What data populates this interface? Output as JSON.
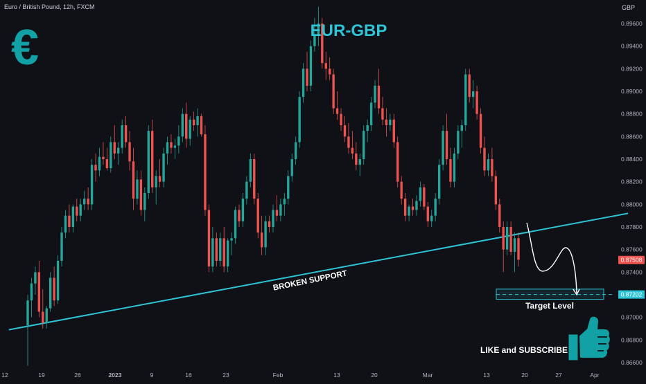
{
  "header": {
    "symbol_line": "Euro / British Pound, 12h, FXCM",
    "currency": "GBP"
  },
  "annotations": {
    "title": "EUR-GBP",
    "logo_symbol": "€",
    "support_label": "BROKEN SUPPORT",
    "target_label": "Target Level",
    "cta_label": "LIKE and SUBSCRIBE",
    "cta_icon": "thumbs-up-icon"
  },
  "colors": {
    "background": "#0f1116",
    "bull": "#26a69a",
    "bear": "#ef5350",
    "accent": "#2ec4d6",
    "current_price_badge": "#ef5350",
    "target_badge": "#2ec4d6"
  },
  "chart_data": {
    "type": "candlestick",
    "title": "EUR-GBP",
    "ylabel": "GBP",
    "ylim": [
      0.8656,
      0.8975
    ],
    "y_ticks": [
      "0.89600",
      "0.89400",
      "0.89200",
      "0.89000",
      "0.88800",
      "0.88600",
      "0.88400",
      "0.88200",
      "0.88000",
      "0.87800",
      "0.87600",
      "0.87400",
      "0.87000",
      "0.86800",
      "0.86600"
    ],
    "x_ticks": [
      "12",
      "19",
      "26",
      "2023",
      "9",
      "16",
      "23",
      "Feb",
      "13",
      "20",
      "Mar",
      "13",
      "20",
      "27",
      "Apr"
    ],
    "current_price": "0.87508",
    "target_price": "0.87202",
    "candles": [
      [
        0.8693,
        0.872,
        0.8657,
        0.8715
      ],
      [
        0.8715,
        0.8735,
        0.87,
        0.873
      ],
      [
        0.873,
        0.8745,
        0.872,
        0.874
      ],
      [
        0.874,
        0.875,
        0.87,
        0.8705
      ],
      [
        0.8705,
        0.8725,
        0.869,
        0.8695
      ],
      [
        0.8695,
        0.871,
        0.869,
        0.8708
      ],
      [
        0.8708,
        0.874,
        0.8705,
        0.8735
      ],
      [
        0.8735,
        0.8745,
        0.871,
        0.8715
      ],
      [
        0.8715,
        0.8755,
        0.8712,
        0.875
      ],
      [
        0.875,
        0.878,
        0.8745,
        0.8775
      ],
      [
        0.8775,
        0.8795,
        0.877,
        0.879
      ],
      [
        0.879,
        0.88,
        0.8775,
        0.878
      ],
      [
        0.878,
        0.88,
        0.8775,
        0.8798
      ],
      [
        0.8798,
        0.8805,
        0.8785,
        0.879
      ],
      [
        0.879,
        0.8805,
        0.8785,
        0.88
      ],
      [
        0.88,
        0.8812,
        0.8795,
        0.8805
      ],
      [
        0.8805,
        0.8815,
        0.8795,
        0.88
      ],
      [
        0.88,
        0.884,
        0.8795,
        0.8835
      ],
      [
        0.8835,
        0.8845,
        0.882,
        0.883
      ],
      [
        0.883,
        0.885,
        0.8825,
        0.8842
      ],
      [
        0.8842,
        0.8855,
        0.8835,
        0.884
      ],
      [
        0.884,
        0.885,
        0.883,
        0.8832
      ],
      [
        0.8832,
        0.886,
        0.8828,
        0.8855
      ],
      [
        0.8855,
        0.887,
        0.884,
        0.8845
      ],
      [
        0.8845,
        0.8855,
        0.8835,
        0.885
      ],
      [
        0.885,
        0.8875,
        0.8845,
        0.887
      ],
      [
        0.887,
        0.8878,
        0.885,
        0.8855
      ],
      [
        0.8855,
        0.8865,
        0.883,
        0.8838
      ],
      [
        0.8838,
        0.885,
        0.8795,
        0.8805
      ],
      [
        0.8805,
        0.883,
        0.88,
        0.8822
      ],
      [
        0.8822,
        0.883,
        0.879,
        0.8795
      ],
      [
        0.8795,
        0.8815,
        0.8785,
        0.881
      ],
      [
        0.881,
        0.887,
        0.8805,
        0.8865
      ],
      [
        0.8865,
        0.8875,
        0.881,
        0.8815
      ],
      [
        0.8815,
        0.883,
        0.88,
        0.8825
      ],
      [
        0.8825,
        0.884,
        0.8815,
        0.882
      ],
      [
        0.882,
        0.885,
        0.8815,
        0.8845
      ],
      [
        0.8845,
        0.886,
        0.8835,
        0.8855
      ],
      [
        0.8855,
        0.8862,
        0.8845,
        0.885
      ],
      [
        0.885,
        0.8858,
        0.884,
        0.8852
      ],
      [
        0.8852,
        0.887,
        0.8845,
        0.886
      ],
      [
        0.886,
        0.8885,
        0.8855,
        0.888
      ],
      [
        0.888,
        0.889,
        0.885,
        0.8858
      ],
      [
        0.8858,
        0.8878,
        0.8852,
        0.8875
      ],
      [
        0.8875,
        0.8882,
        0.8865,
        0.887
      ],
      [
        0.887,
        0.8885,
        0.886,
        0.8878
      ],
      [
        0.8878,
        0.888,
        0.886,
        0.8862
      ],
      [
        0.8862,
        0.887,
        0.879,
        0.8795
      ],
      [
        0.8795,
        0.88,
        0.874,
        0.8745
      ],
      [
        0.8745,
        0.878,
        0.874,
        0.877
      ],
      [
        0.877,
        0.8775,
        0.8745,
        0.875
      ],
      [
        0.875,
        0.8775,
        0.8745,
        0.877
      ],
      [
        0.877,
        0.878,
        0.874,
        0.8745
      ],
      [
        0.8745,
        0.877,
        0.874,
        0.8768
      ],
      [
        0.8768,
        0.8775,
        0.8755,
        0.877
      ],
      [
        0.877,
        0.8798,
        0.8765,
        0.8795
      ],
      [
        0.8795,
        0.88,
        0.878,
        0.8785
      ],
      [
        0.8785,
        0.881,
        0.878,
        0.8805
      ],
      [
        0.8805,
        0.8825,
        0.88,
        0.882
      ],
      [
        0.882,
        0.8845,
        0.8815,
        0.884
      ],
      [
        0.884,
        0.8845,
        0.88,
        0.8805
      ],
      [
        0.8805,
        0.881,
        0.877,
        0.8775
      ],
      [
        0.8775,
        0.879,
        0.8755,
        0.8762
      ],
      [
        0.8762,
        0.879,
        0.8755,
        0.8785
      ],
      [
        0.8785,
        0.879,
        0.8775,
        0.878
      ],
      [
        0.878,
        0.88,
        0.8775,
        0.8795
      ],
      [
        0.8795,
        0.8808,
        0.8785,
        0.879
      ],
      [
        0.879,
        0.8805,
        0.8785,
        0.88
      ],
      [
        0.88,
        0.881,
        0.879,
        0.8805
      ],
      [
        0.8805,
        0.883,
        0.88,
        0.8825
      ],
      [
        0.8825,
        0.8845,
        0.882,
        0.884
      ],
      [
        0.884,
        0.886,
        0.8835,
        0.8855
      ],
      [
        0.8855,
        0.89,
        0.885,
        0.8895
      ],
      [
        0.8895,
        0.8925,
        0.889,
        0.892
      ],
      [
        0.892,
        0.8935,
        0.89,
        0.8905
      ],
      [
        0.8905,
        0.8945,
        0.89,
        0.894
      ],
      [
        0.894,
        0.8965,
        0.8935,
        0.895
      ],
      [
        0.895,
        0.8975,
        0.894,
        0.896
      ],
      [
        0.896,
        0.8965,
        0.892,
        0.8925
      ],
      [
        0.8925,
        0.8935,
        0.891,
        0.892
      ],
      [
        0.892,
        0.893,
        0.891,
        0.8915
      ],
      [
        0.8915,
        0.892,
        0.888,
        0.8885
      ],
      [
        0.8885,
        0.89,
        0.8875,
        0.888
      ],
      [
        0.888,
        0.8885,
        0.8865,
        0.887
      ],
      [
        0.887,
        0.8878,
        0.8855,
        0.886
      ],
      [
        0.886,
        0.8872,
        0.8845,
        0.885
      ],
      [
        0.885,
        0.8865,
        0.884,
        0.8845
      ],
      [
        0.8845,
        0.8855,
        0.883,
        0.8835
      ],
      [
        0.8835,
        0.8845,
        0.8825,
        0.884
      ],
      [
        0.884,
        0.887,
        0.8835,
        0.8865
      ],
      [
        0.8865,
        0.8875,
        0.8855,
        0.887
      ],
      [
        0.887,
        0.8895,
        0.8865,
        0.889
      ],
      [
        0.889,
        0.891,
        0.8885,
        0.8905
      ],
      [
        0.8905,
        0.892,
        0.888,
        0.8885
      ],
      [
        0.8885,
        0.8895,
        0.887,
        0.8875
      ],
      [
        0.8875,
        0.8885,
        0.886,
        0.887
      ],
      [
        0.887,
        0.888,
        0.8865,
        0.8875
      ],
      [
        0.8875,
        0.888,
        0.885,
        0.8855
      ],
      [
        0.8855,
        0.886,
        0.8815,
        0.882
      ],
      [
        0.882,
        0.8825,
        0.88,
        0.8805
      ],
      [
        0.8805,
        0.881,
        0.8785,
        0.879
      ],
      [
        0.879,
        0.88,
        0.8785,
        0.8798
      ],
      [
        0.8798,
        0.8805,
        0.879,
        0.8795
      ],
      [
        0.8795,
        0.8808,
        0.879,
        0.8803
      ],
      [
        0.8803,
        0.882,
        0.8798,
        0.8815
      ],
      [
        0.8815,
        0.8818,
        0.8795,
        0.8798
      ],
      [
        0.8798,
        0.8802,
        0.878,
        0.8785
      ],
      [
        0.8785,
        0.8795,
        0.878,
        0.879
      ],
      [
        0.879,
        0.881,
        0.8785,
        0.8805
      ],
      [
        0.8805,
        0.884,
        0.88,
        0.8835
      ],
      [
        0.8835,
        0.887,
        0.883,
        0.8865
      ],
      [
        0.8865,
        0.888,
        0.8835,
        0.884
      ],
      [
        0.884,
        0.885,
        0.8815,
        0.882
      ],
      [
        0.882,
        0.885,
        0.8815,
        0.8845
      ],
      [
        0.8845,
        0.887,
        0.884,
        0.8865
      ],
      [
        0.8865,
        0.8875,
        0.885,
        0.887
      ],
      [
        0.887,
        0.892,
        0.8865,
        0.8915
      ],
      [
        0.8915,
        0.892,
        0.889,
        0.8895
      ],
      [
        0.8895,
        0.891,
        0.8885,
        0.89
      ],
      [
        0.89,
        0.8905,
        0.8875,
        0.888
      ],
      [
        0.888,
        0.8885,
        0.8845,
        0.885
      ],
      [
        0.885,
        0.886,
        0.8825,
        0.883
      ],
      [
        0.883,
        0.8845,
        0.8825,
        0.884
      ],
      [
        0.884,
        0.885,
        0.882,
        0.8825
      ],
      [
        0.8825,
        0.883,
        0.8795,
        0.88
      ],
      [
        0.88,
        0.8805,
        0.8775,
        0.878
      ],
      [
        0.878,
        0.8785,
        0.874,
        0.876
      ],
      [
        0.876,
        0.8785,
        0.8755,
        0.878
      ],
      [
        0.878,
        0.8785,
        0.8755,
        0.8758
      ],
      [
        0.8758,
        0.8775,
        0.874,
        0.877
      ],
      [
        0.877,
        0.8775,
        0.8745,
        0.8751
      ]
    ],
    "trendline": {
      "label": "BROKEN SUPPORT",
      "from": {
        "x_index": -5,
        "y": 0.8689
      },
      "to": {
        "x_index": 159,
        "y": 0.8792
      }
    },
    "target_zone": {
      "label": "Target Level",
      "y_top": 0.8725,
      "y_bottom": 0.8716,
      "level": 0.87202
    }
  }
}
